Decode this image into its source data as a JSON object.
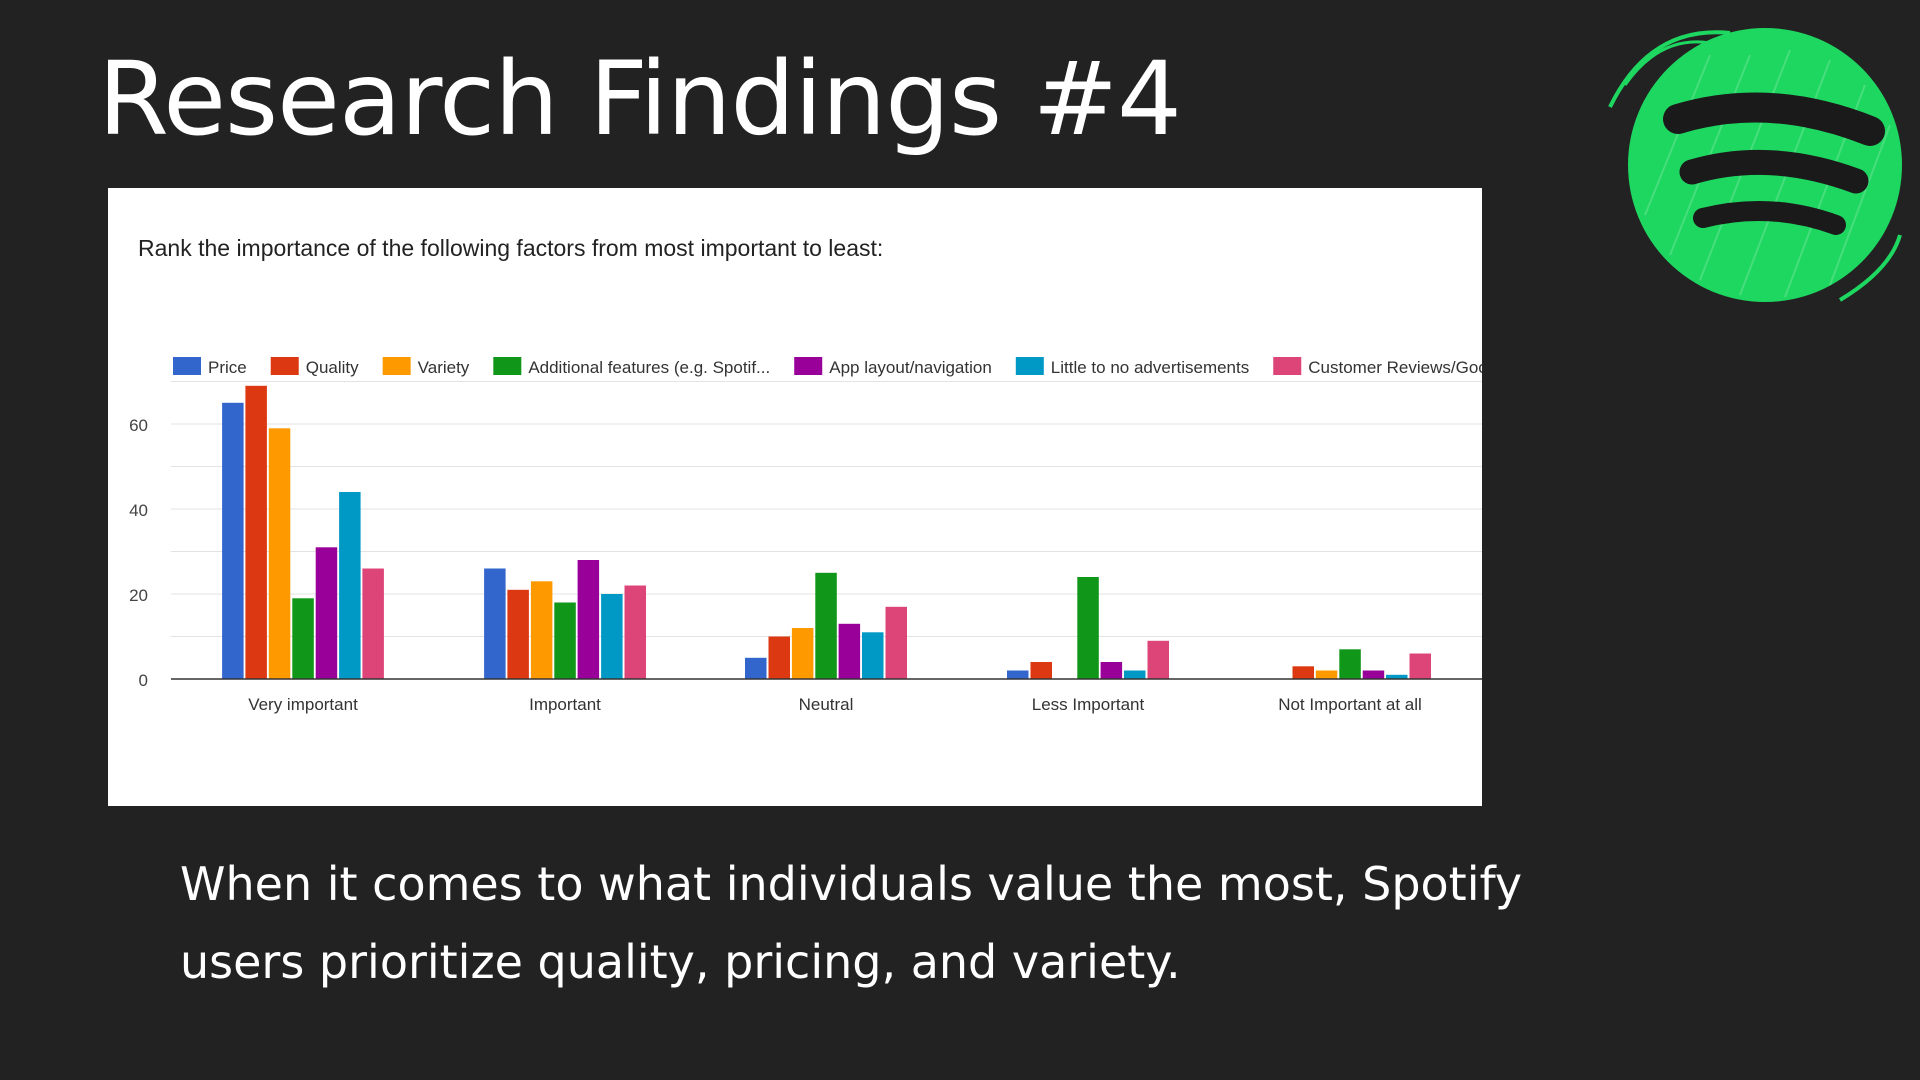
{
  "slide": {
    "title": "Research Findings #4",
    "caption": "When it comes to what individuals value the most, Spotify users prioritize quality, pricing, and variety."
  },
  "logo": {
    "icon": "spotify-logo-icon",
    "color": "#1ed760"
  },
  "chart_data": {
    "type": "bar",
    "title": "Rank the importance of the following factors from most important to least:",
    "categories": [
      "Very important",
      "Important",
      "Neutral",
      "Less Important",
      "Not Important at all"
    ],
    "yticks": [
      0,
      20,
      40,
      60
    ],
    "ylim": [
      0,
      70
    ],
    "grid": true,
    "legend_position": "top",
    "series": [
      {
        "name": "Price",
        "color": "#3366cc",
        "values": [
          65,
          26,
          5,
          2,
          0
        ]
      },
      {
        "name": "Quality",
        "color": "#dc3912",
        "values": [
          69,
          21,
          10,
          4,
          3
        ]
      },
      {
        "name": "Variety",
        "color": "#ff9900",
        "values": [
          59,
          23,
          12,
          0,
          2
        ]
      },
      {
        "name": "Additional features (e.g. Spotif...",
        "color": "#109618",
        "values": [
          19,
          18,
          25,
          24,
          7
        ]
      },
      {
        "name": "App layout/navigation",
        "color": "#990099",
        "values": [
          31,
          28,
          13,
          4,
          2
        ]
      },
      {
        "name": "Little to no advertisements",
        "color": "#0099c6",
        "values": [
          44,
          20,
          11,
          2,
          1
        ]
      },
      {
        "name": "Customer Reviews/Good expe...",
        "color": "#dd4477",
        "values": [
          26,
          22,
          17,
          9,
          6
        ]
      }
    ]
  }
}
